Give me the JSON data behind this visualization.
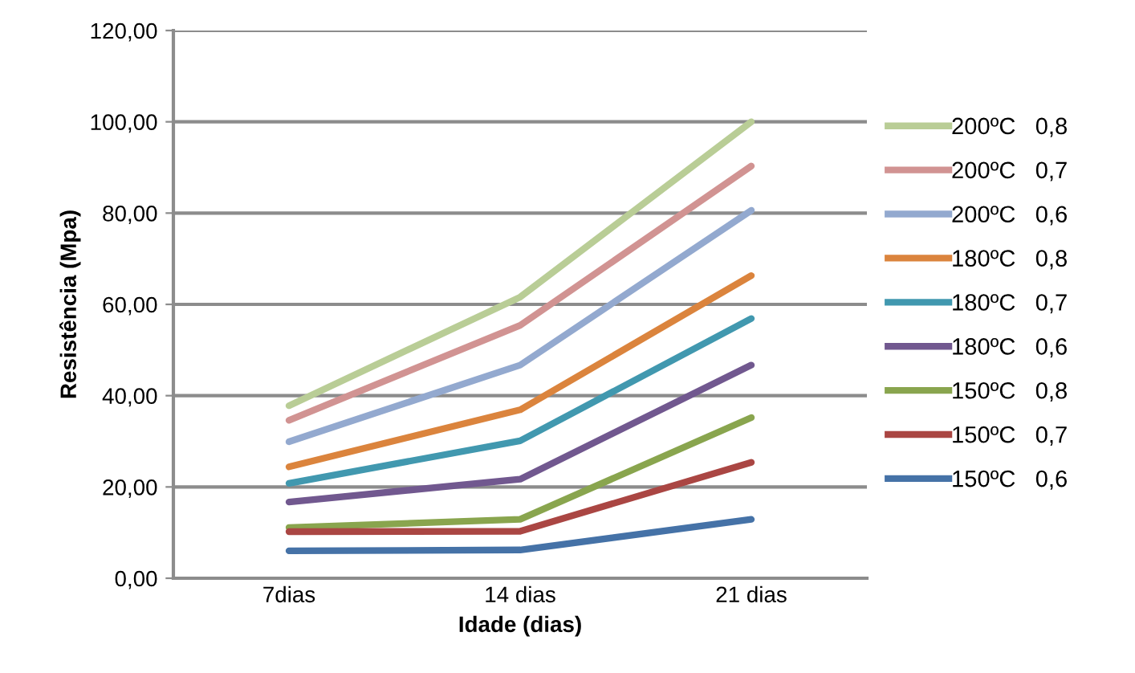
{
  "chart_data": {
    "type": "line",
    "xlabel": "Idade (dias)",
    "ylabel": "Resistência (Mpa)",
    "categories": [
      "7dias",
      "14 dias",
      "21 dias"
    ],
    "series": [
      {
        "name": "200ºC   0,8",
        "color": "#b9cd96",
        "values": [
          37.8,
          61.6,
          100.0
        ]
      },
      {
        "name": "200ºC   0,7",
        "color": "#d19392",
        "values": [
          34.6,
          55.4,
          90.3
        ]
      },
      {
        "name": "200ºC   0,6",
        "color": "#93a9cf",
        "values": [
          29.9,
          46.7,
          80.6
        ]
      },
      {
        "name": "180ºC   0,8",
        "color": "#db843d",
        "values": [
          24.4,
          36.9,
          66.3
        ]
      },
      {
        "name": "180ºC   0,7",
        "color": "#4198af",
        "values": [
          20.8,
          30.1,
          56.9
        ]
      },
      {
        "name": "180ºC   0,6",
        "color": "#71588f",
        "values": [
          16.7,
          21.7,
          46.7
        ]
      },
      {
        "name": "150ºC   0,8",
        "color": "#89a54e",
        "values": [
          11.1,
          12.9,
          35.2
        ]
      },
      {
        "name": "150ºC   0,7",
        "color": "#aa4643",
        "values": [
          10.2,
          10.3,
          25.4
        ]
      },
      {
        "name": "150ºC   0,6",
        "color": "#4572a7",
        "values": [
          6.0,
          6.2,
          12.9
        ]
      }
    ],
    "ylim": [
      0,
      120
    ],
    "yticks": [
      {
        "value": 0,
        "label": "0,00"
      },
      {
        "value": 20,
        "label": "20,00"
      },
      {
        "value": 40,
        "label": "40,00"
      },
      {
        "value": 60,
        "label": "60,00"
      },
      {
        "value": 80,
        "label": "80,00"
      },
      {
        "value": 100,
        "label": "100,00"
      },
      {
        "value": 120,
        "label": "120,00"
      }
    ],
    "grid": "y",
    "legend": "right",
    "marker": "none",
    "line_style": "solid"
  }
}
